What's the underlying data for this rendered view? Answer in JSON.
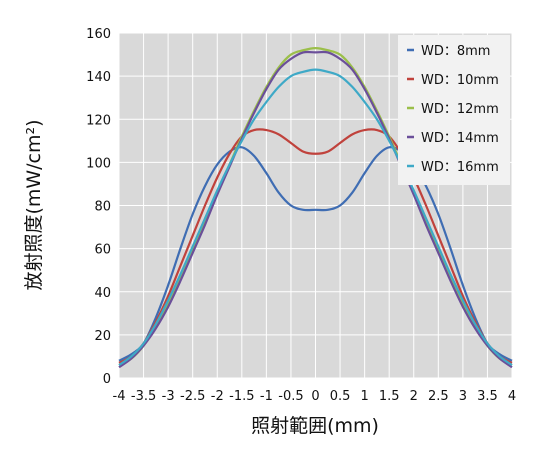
{
  "chart_data": {
    "type": "line",
    "title": "",
    "xlabel": "照射範囲(mm)",
    "ylabel": "放射照度(mW/cm²)",
    "xlim": [
      -4,
      4
    ],
    "ylim": [
      0,
      160
    ],
    "x_ticks": [
      -4,
      -3.5,
      -3,
      -2.5,
      -2,
      -1.5,
      -1,
      -0.5,
      0,
      0.5,
      1,
      1.5,
      2,
      2.5,
      3,
      3.5,
      4
    ],
    "x_tick_labels": [
      "-4",
      "-3.5",
      "-3",
      "-2.5",
      "-2",
      "-1.5",
      "-1",
      "-0.5",
      "0",
      "0.5",
      "1",
      "1.5",
      "2",
      "2.5",
      "3",
      "3.5",
      "4"
    ],
    "y_ticks": [
      0,
      20,
      40,
      60,
      80,
      100,
      120,
      140,
      160
    ],
    "y_tick_labels": [
      "0",
      "20",
      "40",
      "60",
      "80",
      "100",
      "120",
      "140",
      "160"
    ],
    "grid": true,
    "legend_position": "top-right",
    "x": [
      -4,
      -3.75,
      -3.5,
      -3.25,
      -3,
      -2.75,
      -2.5,
      -2.25,
      -2,
      -1.75,
      -1.5,
      -1.25,
      -1,
      -0.75,
      -0.5,
      -0.25,
      0,
      0.25,
      0.5,
      0.75,
      1,
      1.25,
      1.5,
      1.75,
      2,
      2.25,
      2.5,
      2.75,
      3,
      3.25,
      3.5,
      3.75,
      4
    ],
    "series": [
      {
        "name": "WD：8mm",
        "color": "#3f6db3",
        "values": [
          8,
          11,
          16,
          28,
          43,
          60,
          76,
          89,
          99,
          105,
          107,
          103,
          95,
          86,
          80,
          78,
          78,
          78,
          80,
          86,
          95,
          103,
          107,
          105,
          99,
          89,
          76,
          60,
          43,
          28,
          16,
          11,
          8
        ]
      },
      {
        "name": "WD：10mm",
        "color": "#c0423c",
        "values": [
          7,
          10,
          16,
          26,
          38,
          52,
          66,
          80,
          93,
          104,
          112,
          115,
          115,
          113,
          109,
          105,
          104,
          105,
          109,
          113,
          115,
          115,
          112,
          104,
          93,
          80,
          66,
          52,
          38,
          26,
          16,
          10,
          7
        ]
      },
      {
        "name": "WD：12mm",
        "color": "#9bbf4a",
        "values": [
          6,
          9,
          15,
          24,
          34,
          46,
          59,
          72,
          86,
          99,
          112,
          124,
          135,
          144,
          150,
          152,
          153,
          152,
          150,
          144,
          135,
          124,
          112,
          99,
          86,
          72,
          59,
          46,
          34,
          24,
          15,
          9,
          6
        ]
      },
      {
        "name": "WD：14mm",
        "color": "#6b4f9a",
        "values": [
          5,
          9,
          15,
          23,
          33,
          45,
          58,
          71,
          85,
          98,
          111,
          123,
          134,
          143,
          148,
          151,
          151,
          151,
          148,
          143,
          134,
          123,
          111,
          98,
          85,
          71,
          58,
          45,
          33,
          23,
          15,
          9,
          5
        ]
      },
      {
        "name": "WD：16mm",
        "color": "#3ea9c7",
        "values": [
          6,
          10,
          16,
          25,
          36,
          48,
          61,
          74,
          87,
          99,
          110,
          120,
          128,
          135,
          140,
          142,
          143,
          142,
          140,
          135,
          128,
          120,
          110,
          99,
          87,
          74,
          61,
          48,
          36,
          25,
          16,
          10,
          6
        ]
      }
    ]
  },
  "colors": {
    "plot_background": "#d9d9d9",
    "grid": "#ffffff",
    "legend_background": "#f2f2f2"
  }
}
